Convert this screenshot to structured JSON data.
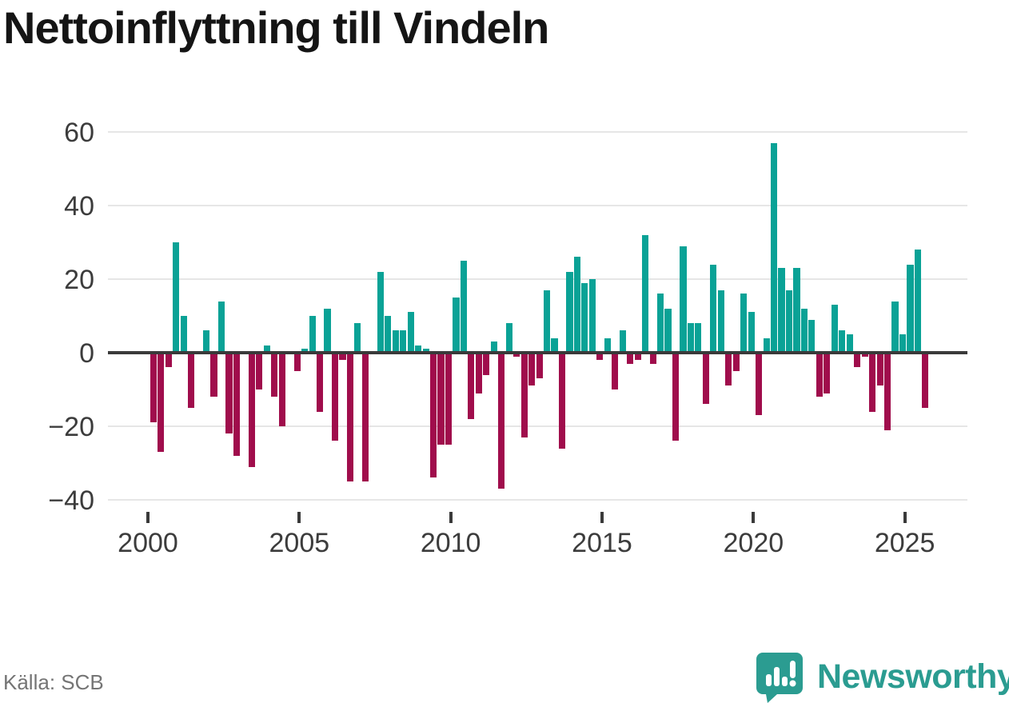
{
  "title": "Nettoinflyttning till Vindeln",
  "source": "Källa: SCB",
  "branding": {
    "logo_text": "Newsworthy",
    "logo_color": "#2b9c91"
  },
  "chart_data": {
    "type": "bar",
    "title": "Nettoinflyttning till Vindeln",
    "xlabel": "",
    "ylabel": "",
    "frequency": "quarterly",
    "start_period": "2000-Q1",
    "end_period": "2025-Q3",
    "x_tick_labels": [
      "2000",
      "2005",
      "2010",
      "2015",
      "2020",
      "2025"
    ],
    "y_tick_labels": [
      "60",
      "40",
      "20",
      "0",
      "−20",
      "−40"
    ],
    "y_ticks": [
      60,
      40,
      20,
      0,
      -20,
      -40
    ],
    "ylim": [
      -42,
      62
    ],
    "grid": "horizontal",
    "legend": "none",
    "colors": {
      "positive": "#0aa296",
      "negative": "#a00d4c",
      "axis": "#3a3a3a",
      "gridline": "#e6e6e6"
    },
    "series": [
      {
        "name": "Nettoinflyttning",
        "values": [
          -19,
          -27,
          -4,
          30,
          10,
          -15,
          0,
          6,
          -12,
          14,
          -22,
          -28,
          0,
          -31,
          -10,
          2,
          -12,
          -20,
          0,
          -5,
          1,
          10,
          -16,
          12,
          -24,
          -2,
          -35,
          8,
          -35,
          0,
          22,
          10,
          6,
          6,
          11,
          2,
          1,
          -34,
          -25,
          -25,
          15,
          25,
          -18,
          -11,
          -6,
          3,
          -37,
          8,
          -1,
          -23,
          -9,
          -7,
          17,
          4,
          -26,
          22,
          26,
          19,
          20,
          -2,
          4,
          -10,
          6,
          -3,
          -2,
          32,
          -3,
          16,
          12,
          -24,
          29,
          8,
          8,
          -14,
          24,
          17,
          -9,
          -5,
          16,
          11,
          -17,
          4,
          57,
          23,
          17,
          23,
          12,
          9,
          -12,
          -11,
          13,
          6,
          5,
          -4,
          -1,
          -16,
          -9,
          -21,
          14,
          5,
          24,
          28,
          -15
        ]
      }
    ]
  }
}
